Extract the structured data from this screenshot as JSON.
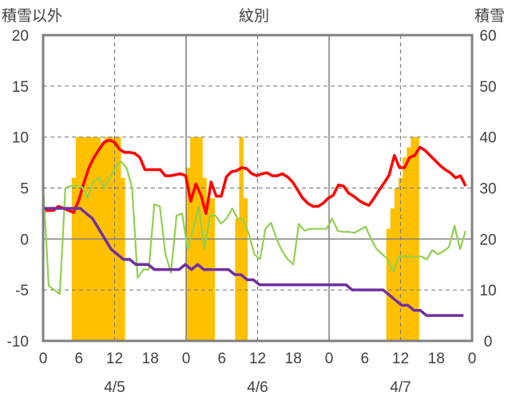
{
  "chart_data": {
    "type": "bar",
    "title": "紋別",
    "left_axis_label": "積雪以外",
    "right_axis_label": "積雪",
    "left_ylim": [
      -10,
      20
    ],
    "left_yticks": [
      "20",
      "15",
      "10",
      "5",
      "0",
      "-5",
      "-10"
    ],
    "right_ylim": [
      0,
      60
    ],
    "right_yticks": [
      "60",
      "50",
      "40",
      "30",
      "20",
      "10",
      "0"
    ],
    "x_tick_labels": [
      "0",
      "6",
      "12",
      "18",
      "0",
      "6",
      "12",
      "18",
      "0",
      "6",
      "12",
      "18",
      "0"
    ],
    "date_labels": [
      "4/5",
      "4/6",
      "4/7"
    ],
    "grid": true,
    "colors": {
      "snow_depth": "#FFC000",
      "temperature": "#FF0000",
      "humidity_like": "#92D050",
      "purple_series": "#7030A0",
      "axis": "#808080",
      "grid": "#808080"
    },
    "series": [
      {
        "axis": "right",
        "style": "bar",
        "color": "#FFC000",
        "values": [
          0,
          0,
          0,
          0,
          0,
          0,
          0,
          32,
          40,
          40,
          40,
          40,
          40,
          40,
          39,
          40,
          40,
          40,
          40,
          32,
          0,
          0,
          0,
          0,
          0,
          0,
          0,
          0,
          0,
          0,
          0,
          0,
          0,
          0,
          0,
          34,
          40,
          40,
          40,
          32,
          28,
          28,
          0,
          0,
          0,
          0,
          0,
          24,
          40,
          28,
          0,
          0,
          0,
          0,
          0,
          0,
          0,
          0,
          0,
          0,
          0,
          0,
          0,
          0,
          0,
          0,
          0,
          0,
          0,
          0,
          0,
          0,
          0,
          0,
          0,
          0,
          0,
          0,
          0,
          0,
          0,
          0,
          0,
          0,
          22,
          26,
          30,
          32,
          36,
          38,
          40,
          40,
          0,
          0,
          0,
          0,
          0,
          0,
          0,
          0,
          0,
          0,
          0,
          0,
          0
        ]
      },
      {
        "axis": "left",
        "style": "line",
        "color": "#FF0000",
        "values": [
          2.8,
          2.8,
          2.8,
          3.2,
          3.0,
          2.8,
          2.6,
          3.8,
          5.5,
          7.0,
          8.0,
          8.8,
          9.5,
          9.7,
          9.5,
          8.8,
          8.5,
          8.5,
          8.4,
          8.0,
          6.8,
          6.8,
          6.8,
          6.8,
          6.2,
          6.2,
          6.3,
          6.4,
          6.2,
          3.7,
          5.4,
          4.3,
          2.5,
          5.6,
          4.2,
          4.2,
          6.1,
          6.6,
          6.7,
          7.0,
          6.9,
          6.4,
          6.2,
          6.4,
          6.5,
          6.2,
          6.2,
          6.4,
          6.1,
          5.6,
          4.8,
          4.0,
          3.5,
          3.2,
          3.2,
          3.5,
          4.0,
          4.3,
          5.3,
          5.2,
          4.5,
          4.2,
          3.8,
          3.5,
          3.3,
          4.0,
          4.8,
          5.5,
          6.3,
          8.2,
          7.0,
          7.0,
          8.0,
          8.2,
          9.0,
          8.7,
          8.2,
          7.7,
          7.2,
          6.8,
          6.5,
          6.0,
          6.2,
          5.2
        ]
      },
      {
        "axis": "left",
        "style": "line",
        "color": "#92D050",
        "values": [
          5.3,
          -4.6,
          -5.0,
          -5.4,
          5.0,
          5.2,
          5.2,
          5.1,
          4.0,
          5.6,
          6.0,
          5.0,
          6.0,
          7.0,
          7.6,
          7.0,
          5.0,
          -3.8,
          -3.0,
          -3.0,
          3.4,
          3.2,
          -1.5,
          -3.3,
          2.3,
          2.5,
          -1.0,
          1.0,
          3.2,
          -1.0,
          2.3,
          2.3,
          1.5,
          2.0,
          3.0,
          2.0,
          1.9,
          0.5,
          -1.5,
          -2.0,
          1.0,
          1.6,
          0.0,
          -1.2,
          -2.0,
          -2.5,
          1.5,
          0.8,
          1.0,
          1.0,
          1.0,
          1.0,
          2.0,
          0.8,
          0.7,
          0.7,
          0.6,
          0.9,
          1.2,
          0.0,
          -1.0,
          -1.5,
          -2.0,
          -3.2,
          -1.7,
          -1.7,
          -1.7,
          -1.8,
          -1.7,
          -2.0,
          -1.1,
          -1.5,
          -1.2,
          -0.8,
          1.3,
          -1.0,
          0.8
        ]
      },
      {
        "axis": "left",
        "style": "line",
        "color": "#7030A0",
        "values": [
          3.0,
          3.0,
          3.0,
          3.0,
          3.0,
          3.0,
          3.0,
          2.5,
          2.0,
          1.0,
          0.0,
          -1.0,
          -1.5,
          -2.0,
          -2.0,
          -2.5,
          -2.5,
          -2.5,
          -3.0,
          -3.0,
          -3.0,
          -3.0,
          -3.0,
          -2.5,
          -3.0,
          -2.5,
          -3.0,
          -3.0,
          -3.0,
          -3.0,
          -3.0,
          -3.5,
          -3.5,
          -4.0,
          -4.0,
          -4.5,
          -4.5,
          -4.5,
          -4.5,
          -4.5,
          -4.5,
          -4.5,
          -4.5,
          -4.5,
          -4.5,
          -4.5,
          -4.5,
          -4.5,
          -4.5,
          -4.5,
          -5.0,
          -5.0,
          -5.0,
          -5.0,
          -5.0,
          -5.0,
          -5.5,
          -6.0,
          -6.5,
          -6.5,
          -7.0,
          -7.0,
          -7.5,
          -7.5,
          -7.5,
          -7.5,
          -7.5,
          -7.5,
          -7.5
        ]
      }
    ]
  }
}
